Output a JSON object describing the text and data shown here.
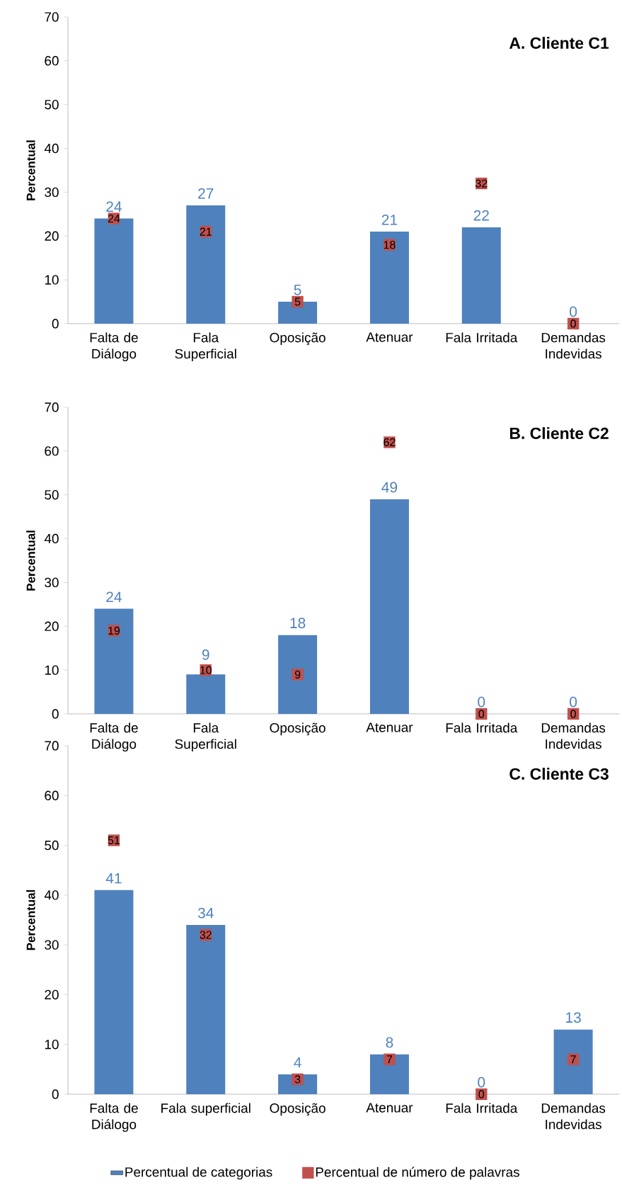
{
  "chart_data": [
    {
      "type": "bar",
      "title": "A. Cliente C1",
      "ylabel": "Percentual",
      "categories": [
        "Falta de Diálogo",
        "Fala Superficial",
        "Oposição",
        "Atenuar",
        "Fala Irritada",
        "Demandas Indevidas"
      ],
      "ylim": [
        0,
        70
      ],
      "yticks": [
        0,
        10,
        20,
        30,
        40,
        50,
        60,
        70
      ],
      "data_labels": true,
      "series": [
        {
          "color": "#4f81bd",
          "values": [
            24,
            27,
            5,
            21,
            22,
            0
          ]
        },
        {
          "type": "scatter",
          "marker": "square",
          "color": "#c0504d",
          "values": [
            24,
            21,
            5,
            18,
            32,
            0
          ]
        }
      ]
    },
    {
      "type": "bar",
      "title": "B. Cliente C2",
      "ylabel": "Percentual",
      "categories": [
        "Falta de Diálogo",
        "Fala Superficial",
        "Oposição",
        "Atenuar",
        "Fala Irritada",
        "Demandas Indevidas"
      ],
      "ylim": [
        0,
        70
      ],
      "yticks": [
        0,
        10,
        20,
        30,
        40,
        50,
        60,
        70
      ],
      "data_labels": true,
      "series": [
        {
          "color": "#4f81bd",
          "values": [
            24,
            9,
            18,
            49,
            0,
            0
          ]
        },
        {
          "type": "scatter",
          "marker": "square",
          "color": "#c0504d",
          "values": [
            19,
            10,
            9,
            62,
            0,
            0
          ]
        }
      ]
    },
    {
      "type": "bar",
      "title": "C. Cliente C3",
      "ylabel": "Percentual",
      "categories": [
        "Falta de Diálogo",
        "Fala superficial",
        "Oposição",
        "Atenuar",
        "Fala Irritada",
        "Demandas Indevidas"
      ],
      "ylim": [
        0,
        70
      ],
      "yticks": [
        0,
        10,
        20,
        30,
        40,
        50,
        60,
        70
      ],
      "data_labels": true,
      "legend": "bottom",
      "series": [
        {
          "name": "Percentual de categorias",
          "color": "#4f81bd",
          "values": [
            41,
            34,
            4,
            8,
            0,
            13
          ]
        },
        {
          "type": "scatter",
          "name": "Percentual de número de palavras",
          "marker": "square",
          "color": "#c0504d",
          "values": [
            51,
            32,
            3,
            7,
            0,
            7
          ]
        }
      ]
    }
  ]
}
